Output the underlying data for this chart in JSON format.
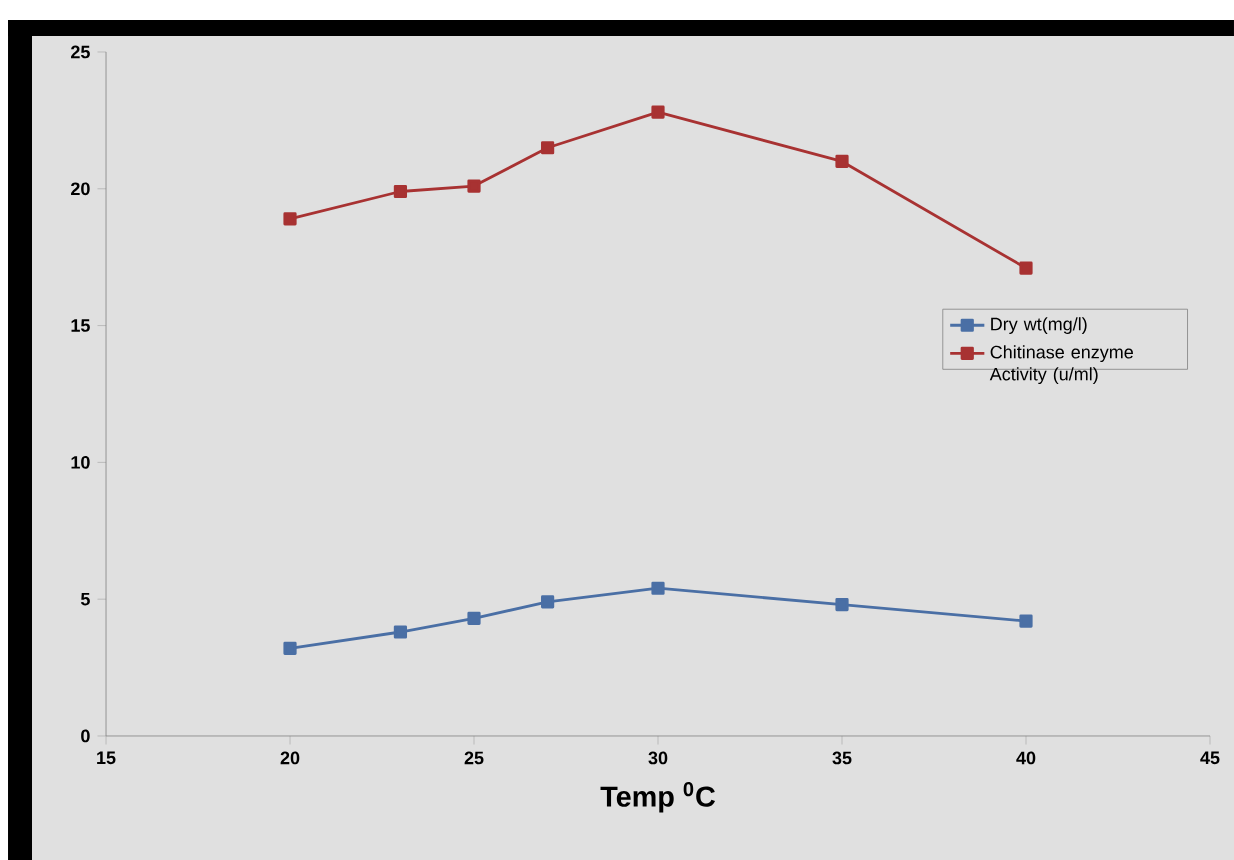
{
  "chart_data": {
    "type": "line",
    "xlabel": "Temp $^{0}$C",
    "x": [
      20,
      23,
      25,
      27,
      30,
      35,
      40
    ],
    "series": [
      {
        "name": "Dry wt(mg/l)",
        "color": "#4a6fa5",
        "values": [
          3.2,
          3.8,
          4.3,
          4.9,
          5.4,
          4.8,
          4.2
        ]
      },
      {
        "name": "Chitinase enzyme Activity (u/ml)",
        "color": "#a83232",
        "values": [
          18.9,
          19.9,
          20.1,
          21.5,
          22.8,
          21.0,
          17.1
        ]
      }
    ],
    "xlim": [
      15,
      45
    ],
    "xticks": [
      15,
      20,
      25,
      30,
      35,
      40,
      45
    ],
    "ylim": [
      0,
      25
    ],
    "yticks": [
      0,
      5,
      10,
      15,
      20,
      25
    ],
    "grid": false,
    "legend": "right",
    "marker": "square",
    "line_style": "solid"
  }
}
